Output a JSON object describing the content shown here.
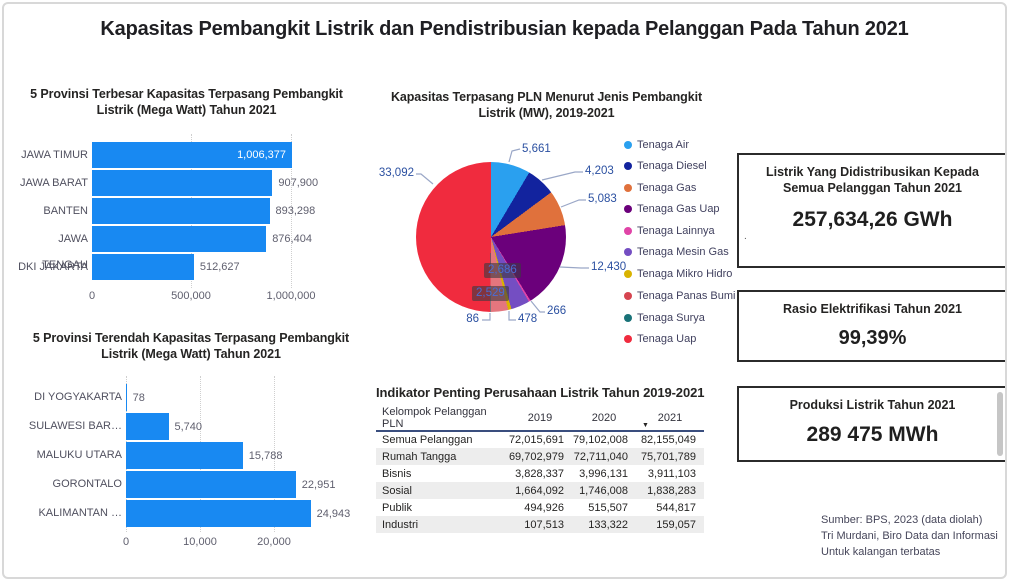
{
  "page": {
    "title": "Kapasitas Pembangkit Listrik dan Pendistribusian kepada Pelanggan Pada Tahun 2021",
    "source_lines": {
      "line1": "Sumber: BPS, 2023 (data diolah)",
      "line2": "Tri Murdani, Biro Data dan Informasi",
      "line3": "Untuk kalangan terbatas"
    },
    "artifact_dot": "."
  },
  "chart_data": [
    {
      "type": "bar",
      "orientation": "horizontal",
      "title": "5 Provinsi Terbesar Kapasitas Terpasang Pembangkit Listrik (Mega Watt) Tahun 2021",
      "categories": [
        "JAWA TIMUR",
        "JAWA BARAT",
        "BANTEN",
        "JAWA TENGAH",
        "DKI JAKARTA"
      ],
      "values": [
        1006377,
        907900,
        893298,
        876404,
        512627
      ],
      "value_labels": [
        "1,006,377",
        "907,900",
        "893,298",
        "876,404",
        "512,627"
      ],
      "x_ticks": [
        "0",
        "500,000",
        "1,000,000"
      ],
      "xlim": [
        0,
        1006377
      ],
      "grid": "dotted-vertical",
      "bar_color": "#1889F2"
    },
    {
      "type": "bar",
      "orientation": "horizontal",
      "title": "5 Provinsi Terendah Kapasitas Terpasang Pembangkit Listrik (Mega Watt) Tahun 2021",
      "categories": [
        "DI YOGYAKARTA",
        "SULAWESI BAR…",
        "MALUKU UTARA",
        "GORONTALO",
        "KALIMANTAN …"
      ],
      "values": [
        78,
        5740,
        15788,
        22951,
        24943
      ],
      "value_labels": [
        "78",
        "5,740",
        "15,788",
        "22,951",
        "24,943"
      ],
      "x_ticks": [
        "0",
        "10,000",
        "20,000"
      ],
      "xlim": [
        0,
        25000
      ],
      "grid": "dotted-vertical",
      "bar_color": "#1889F2"
    },
    {
      "type": "pie",
      "title": "Kapasitas Terpasang PLN Menurut Jenis Pembangkit Listrik (MW), 2019-2021",
      "legend_position": "right",
      "slices": [
        {
          "label": "Tenaga Air",
          "value": 5661,
          "value_label": "5,661",
          "color": "#2AA0EF"
        },
        {
          "label": "Tenaga Diesel",
          "value": 4203,
          "value_label": "4,203",
          "color": "#12239E"
        },
        {
          "label": "Tenaga Gas",
          "value": 5083,
          "value_label": "5,083",
          "color": "#E0713C"
        },
        {
          "label": "Tenaga Gas Uap",
          "value": 12430,
          "value_label": "12,430",
          "color": "#6B007B"
        },
        {
          "label": "Tenaga Lainnya",
          "value": 266,
          "value_label": "266",
          "color": "#E044A7"
        },
        {
          "label": "Tenaga Mesin Gas",
          "value": 2686,
          "value_label": "2,686",
          "color": "#744EC2"
        },
        {
          "label": "Tenaga Mikro Hidro",
          "value": 478,
          "value_label": "478",
          "color": "#D9B300"
        },
        {
          "label": "Tenaga Panas Bumi",
          "value": 2529,
          "value_label": "2,529",
          "color": "#D64550",
          "display_color": "#E4767E"
        },
        {
          "label": "Tenaga Surya",
          "value": 86,
          "value_label": "86",
          "color": "#197278"
        },
        {
          "label": "Tenaga Uap",
          "value": 33092,
          "value_label": "33,092",
          "color": "#F02B3E"
        }
      ]
    },
    {
      "type": "table",
      "title": "Indikator Penting Perusahaan Listrik Tahun 2019-2021",
      "columns": [
        "Kelompok Pelanggan PLN",
        "2019",
        "2020",
        "2021"
      ],
      "sort_column": "2021",
      "sort_icon": "▼",
      "rows": [
        [
          "Semua Pelanggan",
          "72,015,691",
          "79,102,008",
          "82,155,049"
        ],
        [
          "Rumah Tangga",
          "69,702,979",
          "72,711,040",
          "75,701,789"
        ],
        [
          "Bisnis",
          "3,828,337",
          "3,996,131",
          "3,911,103"
        ],
        [
          "Sosial",
          "1,664,092",
          "1,746,008",
          "1,838,283"
        ],
        [
          "Publik",
          "494,926",
          "515,507",
          "544,817"
        ],
        [
          "Industri",
          "107,513",
          "133,322",
          "159,057"
        ]
      ]
    }
  ],
  "kpi_cards": [
    {
      "title": "Listrik Yang Didistribusikan Kepada Semua Pelanggan Tahun 2021",
      "value": "257,634,26 GWh"
    },
    {
      "title": "Rasio Elektrifikasi Tahun 2021",
      "value": "99,39%"
    },
    {
      "title": "Produksi Listrik Tahun 2021",
      "value": "289 475 MWh"
    }
  ]
}
